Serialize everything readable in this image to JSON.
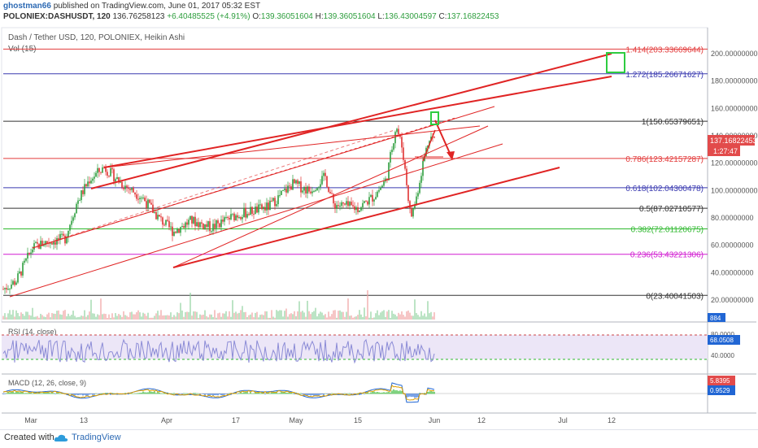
{
  "header": {
    "user": "ghostman66",
    "published": "published on TradingView.com, June 01, 2017 05:32 EST",
    "symbol": "POLONIEX:DASHUSDT, 120",
    "last": "136.76258123",
    "change": "+6.40485525 (+4.91%)",
    "o_label": "O:",
    "o": "139.36051604",
    "h_label": "H:",
    "h": "139.36051604",
    "l_label": "L:",
    "l": "136.43004597",
    "c_label": "C:",
    "c": "137.16822453"
  },
  "pane": {
    "title": "Dash / Tether USD, 120, POLONIEX, Heikin Ashi",
    "vol_label": "Vol (15)",
    "rsi_label": "RSI (14, close)",
    "macd_label": "MACD (12, 26, close, 9)"
  },
  "price_axis": {
    "ticks": [
      "200.00000000",
      "180.00000000",
      "160.00000000",
      "140.00000000",
      "120.00000000",
      "100.00000000",
      "80.00000000",
      "60.00000000",
      "40.00000000",
      "20.00000000"
    ],
    "price_tag": "137.16822453",
    "time_tag": "1:27:47",
    "vol_tag": "884"
  },
  "rsi_axis": {
    "ticks": [
      "80.0000",
      "40.0000"
    ],
    "tag": "68.0508"
  },
  "macd_axis": {
    "tag1": "5.8395",
    "tag2": "0.9529"
  },
  "time_axis": [
    "Mar",
    "13",
    "Apr",
    "17",
    "May",
    "15",
    "Jun",
    "12",
    "Jul",
    "12"
  ],
  "fib_levels": [
    {
      "label": "1.414(203.33669644)",
      "color": "#e33b3b"
    },
    {
      "label": "1.272(185.26671627)",
      "color": "#3a3ab0"
    },
    {
      "label": "1(150.65379651)",
      "color": "#333333"
    },
    {
      "label": "0.786(123.42157287)",
      "color": "#e33b3b"
    },
    {
      "label": "0.618(102.04300478)",
      "color": "#3a3ab0"
    },
    {
      "label": "0.5(87.02710577)",
      "color": "#333333"
    },
    {
      "label": "0.382(72.01120675)",
      "color": "#2eb82e"
    },
    {
      "label": "0.236(53.43221306)",
      "color": "#d11bd1"
    },
    {
      "label": "0(23.40041503)",
      "color": "#333333"
    }
  ],
  "footer": {
    "created": "Created with",
    "brand": "TradingView"
  },
  "colors": {
    "up": "#2e9e3e",
    "down": "#e03131",
    "channel": "#e02424",
    "rsi": "#8b8bd6",
    "macd": "#2166d4",
    "signal": "#e0a000"
  }
}
